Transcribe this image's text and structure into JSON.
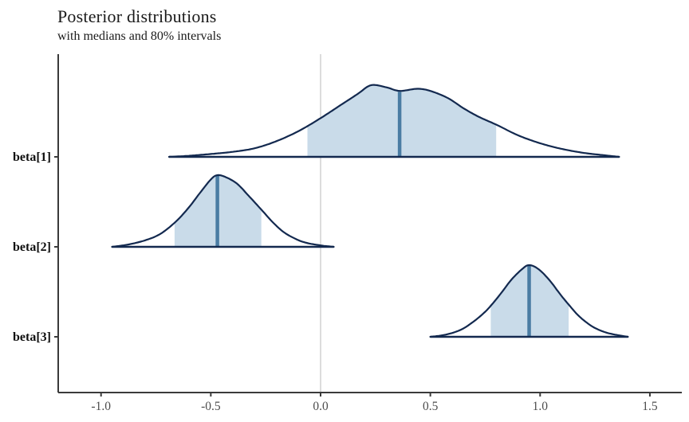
{
  "chart_data": {
    "type": "area",
    "subtype": "posterior-density-ridges",
    "title": "Posterior distributions",
    "subtitle": "with medians and 80% intervals",
    "xlabel": "",
    "ylabel": "",
    "legend": "none",
    "grid": "off",
    "xlim": [
      -1.2,
      1.65
    ],
    "zero_reference_line": 0,
    "x_ticks": [
      -1.0,
      -0.5,
      0.0,
      0.5,
      1.0,
      1.5
    ],
    "x_tick_labels": [
      "-1.0",
      "-0.5",
      "0.0",
      "0.5",
      "1.0",
      "1.5"
    ],
    "parameters": [
      "beta[1]",
      "beta[2]",
      "beta[3]"
    ],
    "series": [
      {
        "name": "beta[1]",
        "median": 0.36,
        "interval_80": [
          -0.06,
          0.8
        ],
        "range": [
          -0.69,
          1.36
        ],
        "curve": [
          [
            -0.69,
            0
          ],
          [
            -0.6,
            0.015
          ],
          [
            -0.5,
            0.04
          ],
          [
            -0.4,
            0.07
          ],
          [
            -0.3,
            0.12
          ],
          [
            -0.2,
            0.22
          ],
          [
            -0.1,
            0.36
          ],
          [
            0.0,
            0.54
          ],
          [
            0.1,
            0.74
          ],
          [
            0.17,
            0.88
          ],
          [
            0.23,
            1.0
          ],
          [
            0.3,
            0.97
          ],
          [
            0.36,
            0.92
          ],
          [
            0.44,
            0.95
          ],
          [
            0.5,
            0.92
          ],
          [
            0.58,
            0.82
          ],
          [
            0.65,
            0.68
          ],
          [
            0.72,
            0.56
          ],
          [
            0.8,
            0.45
          ],
          [
            0.9,
            0.3
          ],
          [
            1.0,
            0.19
          ],
          [
            1.1,
            0.11
          ],
          [
            1.2,
            0.055
          ],
          [
            1.3,
            0.02
          ],
          [
            1.36,
            0
          ]
        ]
      },
      {
        "name": "beta[2]",
        "median": -0.47,
        "interval_80": [
          -0.665,
          -0.27
        ],
        "range": [
          -0.95,
          0.06
        ],
        "curve": [
          [
            -0.95,
            0
          ],
          [
            -0.88,
            0.03
          ],
          [
            -0.8,
            0.09
          ],
          [
            -0.73,
            0.18
          ],
          [
            -0.66,
            0.35
          ],
          [
            -0.6,
            0.55
          ],
          [
            -0.55,
            0.75
          ],
          [
            -0.5,
            0.94
          ],
          [
            -0.47,
            1.0
          ],
          [
            -0.43,
            0.97
          ],
          [
            -0.38,
            0.88
          ],
          [
            -0.33,
            0.72
          ],
          [
            -0.27,
            0.52
          ],
          [
            -0.22,
            0.35
          ],
          [
            -0.17,
            0.21
          ],
          [
            -0.12,
            0.12
          ],
          [
            -0.07,
            0.06
          ],
          [
            0.0,
            0.02
          ],
          [
            0.06,
            0
          ]
        ]
      },
      {
        "name": "beta[3]",
        "median": 0.95,
        "interval_80": [
          0.775,
          1.13
        ],
        "range": [
          0.5,
          1.4
        ],
        "curve": [
          [
            0.5,
            0
          ],
          [
            0.57,
            0.03
          ],
          [
            0.64,
            0.1
          ],
          [
            0.7,
            0.22
          ],
          [
            0.75,
            0.35
          ],
          [
            0.78,
            0.45
          ],
          [
            0.82,
            0.6
          ],
          [
            0.87,
            0.8
          ],
          [
            0.92,
            0.95
          ],
          [
            0.95,
            1.0
          ],
          [
            0.99,
            0.95
          ],
          [
            1.04,
            0.8
          ],
          [
            1.09,
            0.6
          ],
          [
            1.13,
            0.45
          ],
          [
            1.18,
            0.28
          ],
          [
            1.24,
            0.14
          ],
          [
            1.3,
            0.06
          ],
          [
            1.36,
            0.02
          ],
          [
            1.4,
            0
          ]
        ]
      }
    ],
    "colors": {
      "curve_outline": "#13294f",
      "interval_fill": "#c9dbe9",
      "median_line": "#4a7ca3",
      "zero_line": "#dcdcdc",
      "axis": "#3a3a3a",
      "tick_label": "#4d4d4d",
      "parameter_label": "#111111",
      "title_text": "#1a1a1a"
    }
  }
}
